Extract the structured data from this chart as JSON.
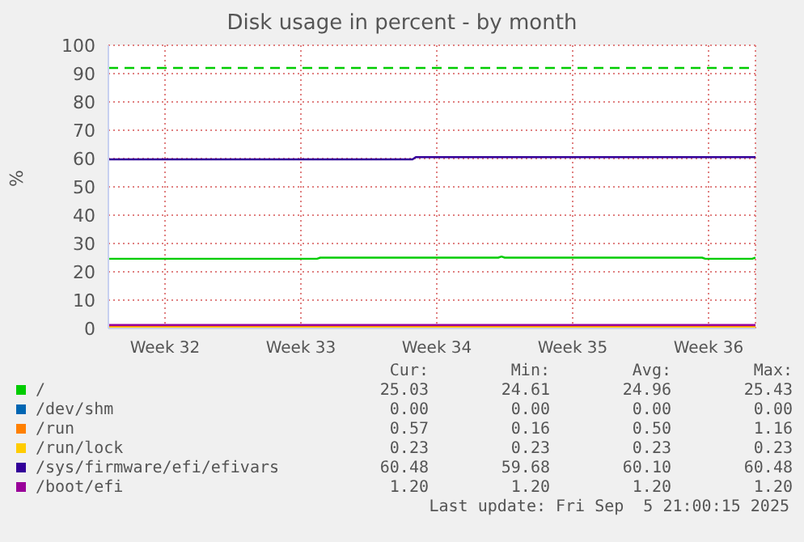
{
  "chart_data": {
    "type": "line",
    "title": "Disk usage in percent - by month",
    "ylabel": "%",
    "xlim": [
      "2025-08-03T13:00",
      "2025-09-05T21:00"
    ],
    "xticks": [
      {
        "value": "2025-08-06T11:00",
        "label": "Week 32"
      },
      {
        "value": "2025-08-13T11:00",
        "label": "Week 33"
      },
      {
        "value": "2025-08-20T11:00",
        "label": "Week 34"
      },
      {
        "value": "2025-08-27T11:00",
        "label": "Week 35"
      },
      {
        "value": "2025-09-03T11:00",
        "label": "Week 36"
      }
    ],
    "ylim": [
      0,
      100
    ],
    "yticks": [
      0,
      10,
      20,
      30,
      40,
      50,
      60,
      70,
      80,
      90,
      100
    ],
    "grid": true,
    "legend": "bottom",
    "marker": "none",
    "line_style": "solid",
    "series": [
      {
        "name": "/",
        "color": "#00cc00",
        "x": [
          "2025-08-03T13:00",
          "2025-08-14T07:00",
          "2025-08-14T11:00",
          "2025-08-23T15:00",
          "2025-08-23T19:00",
          "2025-08-23T23:00",
          "2025-09-03T03:00",
          "2025-09-03T07:00",
          "2025-09-05T17:00",
          "2025-09-05T21:00"
        ],
        "values": [
          24.6,
          24.6,
          25.0,
          25.0,
          25.4,
          25.0,
          25.0,
          24.6,
          24.6,
          25.0
        ]
      },
      {
        "name": "/dev/shm",
        "color": "#0066b3"
      },
      {
        "name": "/run",
        "color": "#ff8000",
        "x": [
          "2025-08-03T13:00",
          "2025-09-05T21:00"
        ],
        "values": [
          0.5,
          0.5
        ]
      },
      {
        "name": "/run/lock",
        "color": "#ffcc00",
        "x": [
          "2025-08-03T13:00",
          "2025-09-05T21:00"
        ],
        "values": [
          0.2,
          0.2
        ]
      },
      {
        "name": "/sys/firmware/efi/efivars",
        "color": "#330099",
        "x": [
          "2025-08-03T13:00",
          "2025-08-19T05:00",
          "2025-08-19T09:00",
          "2025-09-05T21:00"
        ],
        "values": [
          59.7,
          59.7,
          60.5,
          60.5
        ]
      },
      {
        "name": "/boot/efi",
        "color": "#990099",
        "x": [
          "2025-08-03T13:00",
          "2025-09-05T21:00"
        ],
        "values": [
          1.2,
          1.2
        ]
      }
    ],
    "ref_lines": [
      {
        "axis": "y",
        "value": 92,
        "color": "#00cc00",
        "line_style": "dashed"
      }
    ],
    "annotations": [
      "Cur:",
      "Min:",
      "Avg:",
      "Max:",
      "25.03",
      "24.61",
      "24.96",
      "25.43",
      "0.00",
      "0.00",
      "0.00",
      "0.00",
      "0.57",
      "0.16",
      "0.50",
      "1.16",
      "0.23",
      "0.23",
      "0.23",
      "0.23",
      "60.48",
      "59.68",
      "60.10",
      "60.48",
      "1.20",
      "1.20",
      "1.20",
      "1.20",
      "Last update: Fri Sep  5 21:00:15 2025"
    ]
  }
}
